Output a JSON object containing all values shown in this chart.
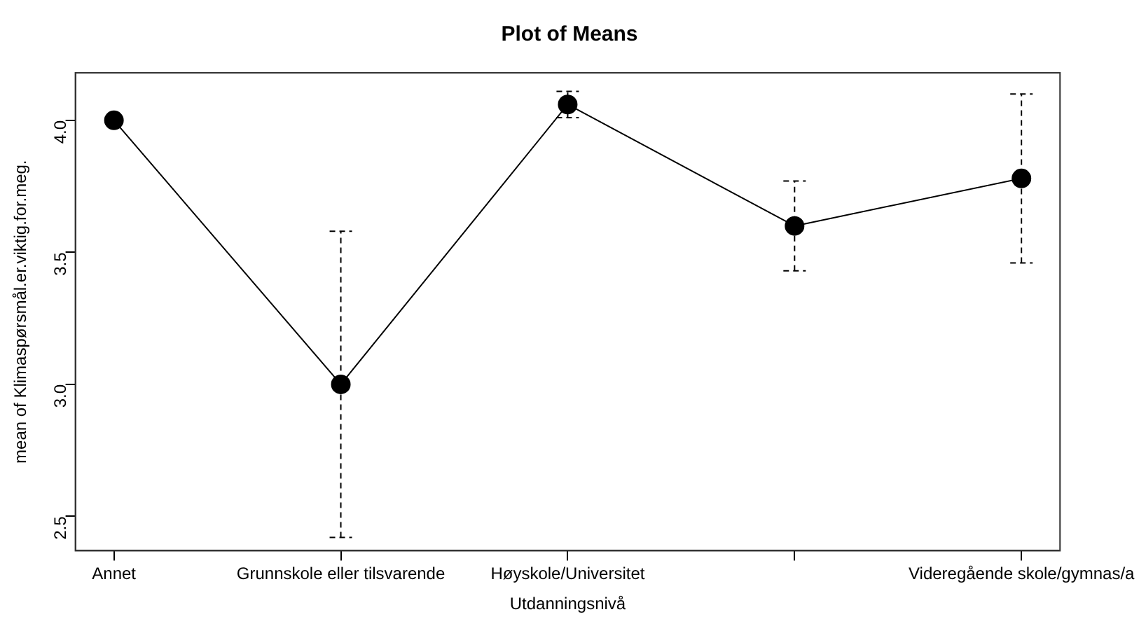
{
  "chart_data": {
    "type": "line",
    "title": "Plot of Means",
    "xlabel": "Utdanningsnivå",
    "ylabel": "mean of Klimaspørsmål.er.viktig.for.meg.",
    "categories": [
      "Annet",
      "Grunnskole eller tilsvarende",
      "Høyskole/Universitet",
      null,
      "Videregående skole/gymnas/a"
    ],
    "series": [
      {
        "color": "#000000",
        "values": [
          4.0,
          3.0,
          4.06,
          3.6,
          3.78
        ],
        "errors": [
          null,
          [
            2.42,
            3.58
          ],
          [
            4.01,
            4.11
          ],
          [
            3.43,
            3.77
          ],
          [
            3.46,
            4.1
          ]
        ]
      }
    ],
    "ylim": [
      2.37,
      4.18
    ],
    "yticks": [
      2.5,
      {
        "value": 3,
        "label": "3.0"
      },
      3.5,
      {
        "value": 4,
        "label": "4.0"
      }
    ],
    "marker": "circle",
    "line_style": "solid",
    "grid": false,
    "legend": false
  }
}
